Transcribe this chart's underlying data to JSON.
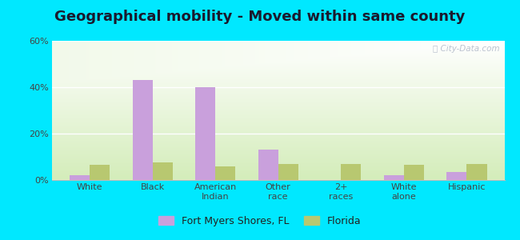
{
  "title": "Geographical mobility - Moved within same county",
  "categories": [
    "White",
    "Black",
    "American\nIndian",
    "Other\nrace",
    "2+\nraces",
    "White\nalone",
    "Hispanic"
  ],
  "fort_myers_values": [
    2.0,
    43.0,
    40.0,
    13.0,
    0.0,
    2.0,
    3.5
  ],
  "florida_values": [
    6.5,
    7.5,
    6.0,
    7.0,
    7.0,
    6.5,
    7.0
  ],
  "fort_myers_color": "#c9a0dc",
  "florida_color": "#b8c870",
  "ylim": [
    0,
    60
  ],
  "yticks": [
    0,
    20,
    40,
    60
  ],
  "ytick_labels": [
    "0%",
    "20%",
    "40%",
    "60%"
  ],
  "outer_background": "#00e8ff",
  "legend_label_1": "Fort Myers Shores, FL",
  "legend_label_2": "Florida",
  "watermark": "ⓘ City-Data.com",
  "title_fontsize": 13,
  "tick_fontsize": 8,
  "legend_fontsize": 9
}
